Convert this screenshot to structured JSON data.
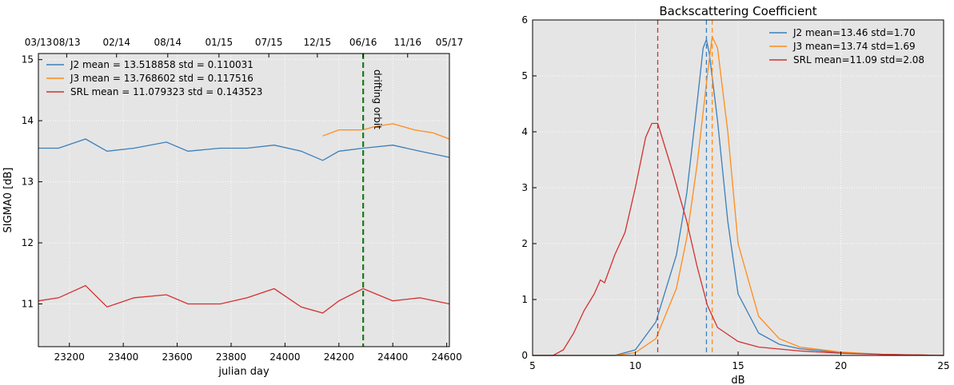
{
  "chart_data": [
    {
      "type": "line",
      "title": "",
      "xlabel": "julian day",
      "ylabel": "SIGMA0 [dB]",
      "xlim": [
        23085,
        24610
      ],
      "ylim": [
        10.3,
        15.1
      ],
      "xticks": [
        23200,
        23400,
        23600,
        23800,
        24000,
        24200,
        24400,
        24600
      ],
      "yticks": [
        11,
        12,
        13,
        14,
        15
      ],
      "top_xticks": [
        {
          "x": 23085,
          "label": "03/13"
        },
        {
          "x": 23190,
          "label": "08/13"
        },
        {
          "x": 23375,
          "label": "02/14"
        },
        {
          "x": 23565,
          "label": "08/14"
        },
        {
          "x": 23755,
          "label": "01/15"
        },
        {
          "x": 23940,
          "label": "07/15"
        },
        {
          "x": 24120,
          "label": "12/15"
        },
        {
          "x": 24290,
          "label": "06/16"
        },
        {
          "x": 24455,
          "label": "11/16"
        },
        {
          "x": 24610,
          "label": "05/17"
        }
      ],
      "grid": true,
      "legend_position": "top-left",
      "vline": {
        "x": 24290,
        "label": "drifting orbit",
        "color": "#1a7a1a"
      },
      "series": [
        {
          "name": "J2",
          "legend": "J2    mean = 13.518858   std = 0.110031",
          "color": "#3b7fba",
          "x": [
            23085,
            23160,
            23260,
            23340,
            23440,
            23560,
            23640,
            23760,
            23860,
            23960,
            24060,
            24140,
            24200,
            24290,
            24400,
            24500,
            24610
          ],
          "y": [
            13.55,
            13.55,
            13.7,
            13.5,
            13.55,
            13.65,
            13.5,
            13.55,
            13.55,
            13.6,
            13.5,
            13.35,
            13.5,
            13.55,
            13.6,
            13.5,
            13.4
          ]
        },
        {
          "name": "J3",
          "legend": "J3    mean = 13.768602   std = 0.117516",
          "color": "#ff8c1a",
          "x": [
            24140,
            24200,
            24290,
            24330,
            24400,
            24480,
            24550,
            24610
          ],
          "y": [
            13.75,
            13.85,
            13.85,
            13.9,
            13.95,
            13.85,
            13.8,
            13.7
          ]
        },
        {
          "name": "SRL",
          "legend": "SRL   mean = 11.079323   std = 0.143523",
          "color": "#d43030",
          "x": [
            23085,
            23160,
            23260,
            23340,
            23440,
            23560,
            23640,
            23760,
            23860,
            23960,
            24060,
            24140,
            24200,
            24290,
            24400,
            24500,
            24610
          ],
          "y": [
            11.05,
            11.1,
            11.3,
            10.95,
            11.1,
            11.15,
            11.0,
            11.0,
            11.1,
            11.25,
            10.95,
            10.85,
            11.05,
            11.25,
            11.05,
            11.1,
            11.0
          ]
        }
      ]
    },
    {
      "type": "line",
      "title": "Backscattering Coefficient",
      "xlabel": "dB",
      "ylabel": "",
      "xlim": [
        5,
        25
      ],
      "ylim": [
        0,
        6
      ],
      "xticks": [
        5,
        10,
        15,
        20,
        25
      ],
      "yticks": [
        0,
        1,
        2,
        3,
        4,
        5,
        6
      ],
      "grid": true,
      "legend_position": "top-right",
      "series": [
        {
          "name": "J2",
          "legend": "J2  mean=13.46 std=1.70",
          "color": "#3b7fba",
          "mean": 13.46,
          "x": [
            5,
            9,
            10,
            11,
            12,
            12.5,
            13,
            13.3,
            13.46,
            13.6,
            14,
            14.5,
            15,
            16,
            17,
            18,
            20,
            22,
            25
          ],
          "y": [
            0,
            0,
            0.1,
            0.6,
            1.8,
            2.9,
            4.5,
            5.5,
            5.65,
            5.4,
            4.2,
            2.4,
            1.1,
            0.4,
            0.2,
            0.12,
            0.05,
            0.02,
            0
          ]
        },
        {
          "name": "J3",
          "legend": "J3  mean=13.74 std=1.69",
          "color": "#ff8c1a",
          "mean": 13.74,
          "x": [
            5,
            9,
            10,
            11,
            12,
            12.5,
            13,
            13.5,
            13.74,
            14,
            14.5,
            15,
            16,
            17,
            18,
            20,
            22,
            25
          ],
          "y": [
            0,
            0,
            0.05,
            0.3,
            1.2,
            2.1,
            3.4,
            5.0,
            5.7,
            5.5,
            4.0,
            2.0,
            0.7,
            0.3,
            0.15,
            0.06,
            0.02,
            0
          ]
        },
        {
          "name": "SRL",
          "legend": "SRL mean=11.09 std=2.08",
          "color": "#d43030",
          "mean": 11.09,
          "x": [
            5,
            6,
            6.5,
            7,
            7.5,
            8,
            8.3,
            8.5,
            9,
            9.5,
            10,
            10.5,
            10.8,
            11.09,
            11.3,
            11.8,
            12.5,
            13,
            13.5,
            14,
            15,
            16,
            18,
            20,
            22,
            25
          ],
          "y": [
            0,
            0,
            0.1,
            0.4,
            0.8,
            1.1,
            1.35,
            1.3,
            1.8,
            2.2,
            3.0,
            3.9,
            4.15,
            4.15,
            3.9,
            3.3,
            2.4,
            1.6,
            0.9,
            0.5,
            0.25,
            0.15,
            0.08,
            0.04,
            0.02,
            0
          ]
        }
      ]
    }
  ]
}
